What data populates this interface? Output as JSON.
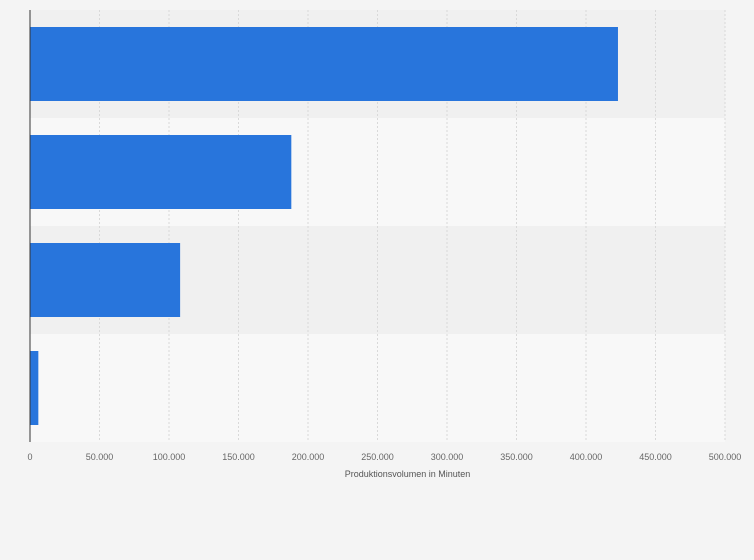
{
  "chart_data": {
    "type": "bar",
    "orientation": "horizontal",
    "categories": [
      "",
      "",
      "",
      ""
    ],
    "series": [
      {
        "values": [
          423000,
          188000,
          108000,
          6000
        ]
      }
    ],
    "xlabel": "Produktionsvolumen in Minuten",
    "ylabel": "",
    "xlim": [
      0,
      500000
    ],
    "xticks": [
      0,
      50000,
      100000,
      150000,
      200000,
      250000,
      300000,
      350000,
      400000,
      450000,
      500000
    ],
    "xtick_labels": [
      "0",
      "50.000",
      "100.000",
      "150.000",
      "200.000",
      "250.000",
      "300.000",
      "350.000",
      "400.000",
      "450.000",
      "500.000"
    ],
    "grid": true,
    "colors": {
      "bar": "#2875dc",
      "band_dark": "#f0f0f0",
      "band_light": "#f8f8f8",
      "gridline": "#d9d9d9",
      "axis": "#333333"
    }
  }
}
